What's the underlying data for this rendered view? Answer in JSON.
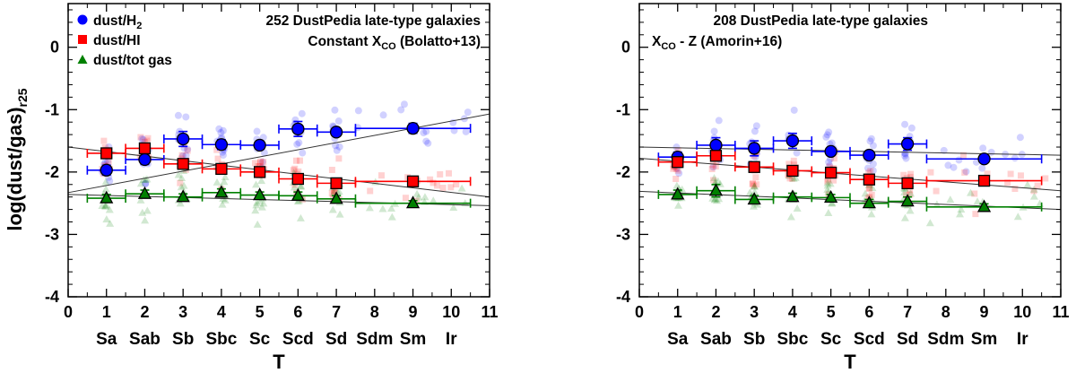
{
  "figure": {
    "ylabel_main": "log(dust/gas)",
    "ylabel_sub": "r25",
    "xlabel": "T",
    "type_labels": [
      "Sa",
      "Sab",
      "Sb",
      "Sbc",
      "Sc",
      "Scd",
      "Sd",
      "Sdm",
      "Sm",
      "Ir"
    ],
    "legend": [
      {
        "label": "dust/H",
        "sub": "2",
        "color": "#0000ff",
        "marker": "circle"
      },
      {
        "label": "dust/HI",
        "sub": "",
        "color": "#ff0000",
        "marker": "square"
      },
      {
        "label": "dust/tot gas",
        "sub": "",
        "color": "#008000",
        "marker": "triangle"
      }
    ]
  },
  "chart_data": [
    {
      "type": "scatter",
      "annotation_line1": "252 DustPedia late-type galaxies",
      "annotation_line2_pre": "Constant X",
      "annotation_line2_sub": "CO",
      "annotation_line2_post": " (Bolatto+13)",
      "xlim": [
        0,
        11
      ],
      "ylim": [
        -4,
        0.7
      ],
      "x_ticks": [
        0,
        1,
        2,
        3,
        4,
        5,
        6,
        7,
        8,
        9,
        10,
        11
      ],
      "y_ticks": [
        0,
        -1,
        -2,
        -3,
        -4
      ],
      "series": [
        {
          "name": "dust/H2",
          "color": "#0000ff",
          "marker": "circle",
          "points": [
            {
              "x": 1,
              "y": -1.97,
              "xerr": [
                0.5,
                0.5
              ],
              "yerr": 0.08
            },
            {
              "x": 2,
              "y": -1.8,
              "xerr": [
                0.5,
                0.5
              ],
              "yerr": 0.08
            },
            {
              "x": 3,
              "y": -1.47,
              "xerr": [
                0.5,
                0.5
              ],
              "yerr": 0.12
            },
            {
              "x": 4,
              "y": -1.56,
              "xerr": [
                0.5,
                0.5
              ],
              "yerr": 0.08
            },
            {
              "x": 5,
              "y": -1.57,
              "xerr": [
                0.5,
                0.5
              ],
              "yerr": 0.06
            },
            {
              "x": 6,
              "y": -1.31,
              "xerr": [
                0.5,
                0.5
              ],
              "yerr": 0.12
            },
            {
              "x": 7,
              "y": -1.36,
              "xerr": [
                0.5,
                0.5
              ],
              "yerr": 0.05
            },
            {
              "x": 9,
              "y": -1.3,
              "xerr": [
                1.5,
                1.5
              ],
              "yerr": 0.08
            }
          ],
          "fit": {
            "x1": 0,
            "y1": -2.33,
            "x2": 11,
            "y2": -1.07
          }
        },
        {
          "name": "dust/HI",
          "color": "#ff0000",
          "marker": "square",
          "points": [
            {
              "x": 1,
              "y": -1.7,
              "xerr": [
                0.5,
                0.5
              ],
              "yerr": 0.08
            },
            {
              "x": 2,
              "y": -1.62,
              "xerr": [
                0.5,
                0.5
              ],
              "yerr": 0.07
            },
            {
              "x": 3,
              "y": -1.87,
              "xerr": [
                0.5,
                0.5
              ],
              "yerr": 0.06
            },
            {
              "x": 4,
              "y": -1.95,
              "xerr": [
                0.5,
                0.5
              ],
              "yerr": 0.06
            },
            {
              "x": 5,
              "y": -2.0,
              "xerr": [
                0.5,
                0.5
              ],
              "yerr": 0.06
            },
            {
              "x": 6,
              "y": -2.11,
              "xerr": [
                0.5,
                0.5
              ],
              "yerr": 0.06
            },
            {
              "x": 7,
              "y": -2.18,
              "xerr": [
                0.5,
                0.5
              ],
              "yerr": 0.05
            },
            {
              "x": 9,
              "y": -2.15,
              "xerr": [
                1.5,
                1.5
              ],
              "yerr": 0.05
            }
          ],
          "fit": {
            "x1": 0,
            "y1": -1.6,
            "x2": 11,
            "y2": -2.4
          }
        },
        {
          "name": "dust/tot gas",
          "color": "#008000",
          "marker": "triangle",
          "points": [
            {
              "x": 1,
              "y": -2.42,
              "xerr": [
                0.5,
                0.5
              ],
              "yerr": 0.06
            },
            {
              "x": 2,
              "y": -2.35,
              "xerr": [
                0.5,
                0.5
              ],
              "yerr": 0.06
            },
            {
              "x": 3,
              "y": -2.4,
              "xerr": [
                0.5,
                0.5
              ],
              "yerr": 0.05
            },
            {
              "x": 4,
              "y": -2.33,
              "xerr": [
                0.5,
                0.5
              ],
              "yerr": 0.06
            },
            {
              "x": 5,
              "y": -2.37,
              "xerr": [
                0.5,
                0.5
              ],
              "yerr": 0.05
            },
            {
              "x": 6,
              "y": -2.38,
              "xerr": [
                0.5,
                0.5
              ],
              "yerr": 0.06
            },
            {
              "x": 7,
              "y": -2.43,
              "xerr": [
                0.5,
                0.5
              ],
              "yerr": 0.05
            },
            {
              "x": 9,
              "y": -2.5,
              "xerr": [
                1.5,
                1.5
              ],
              "yerr": 0.04
            }
          ],
          "fit": {
            "x1": 0,
            "y1": -2.36,
            "x2": 11,
            "y2": -2.54
          }
        }
      ]
    },
    {
      "type": "scatter",
      "annotation_line1": "208 DustPedia late-type galaxies",
      "annotation_line2_pre": "X",
      "annotation_line2_sub": "CO",
      "annotation_line2_post": " - Z (Amorin+16)",
      "xlim": [
        0,
        11
      ],
      "ylim": [
        -4,
        0.7
      ],
      "x_ticks": [
        0,
        1,
        2,
        3,
        4,
        5,
        6,
        7,
        8,
        9,
        10,
        11
      ],
      "y_ticks": [
        0,
        -1,
        -2,
        -3,
        -4
      ],
      "series": [
        {
          "name": "dust/H2",
          "color": "#0000ff",
          "marker": "circle",
          "points": [
            {
              "x": 1,
              "y": -1.76,
              "xerr": [
                0.5,
                0.5
              ],
              "yerr": 0.08
            },
            {
              "x": 2,
              "y": -1.57,
              "xerr": [
                0.5,
                0.5
              ],
              "yerr": 0.12
            },
            {
              "x": 3,
              "y": -1.62,
              "xerr": [
                0.5,
                0.5
              ],
              "yerr": 0.12
            },
            {
              "x": 4,
              "y": -1.5,
              "xerr": [
                0.5,
                0.5
              ],
              "yerr": 0.12
            },
            {
              "x": 5,
              "y": -1.67,
              "xerr": [
                0.5,
                0.5
              ],
              "yerr": 0.05
            },
            {
              "x": 6,
              "y": -1.73,
              "xerr": [
                0.5,
                0.5
              ],
              "yerr": 0.06
            },
            {
              "x": 7,
              "y": -1.55,
              "xerr": [
                0.5,
                0.5
              ],
              "yerr": 0.1
            },
            {
              "x": 9,
              "y": -1.79,
              "xerr": [
                1.5,
                1.5
              ],
              "yerr": 0.04
            }
          ],
          "fit": {
            "x1": 0,
            "y1": -1.6,
            "x2": 11,
            "y2": -1.73
          }
        },
        {
          "name": "dust/HI",
          "color": "#ff0000",
          "marker": "square",
          "points": [
            {
              "x": 1,
              "y": -1.84,
              "xerr": [
                0.5,
                0.5
              ],
              "yerr": 0.06
            },
            {
              "x": 2,
              "y": -1.74,
              "xerr": [
                0.5,
                0.5
              ],
              "yerr": 0.07
            },
            {
              "x": 3,
              "y": -1.92,
              "xerr": [
                0.5,
                0.5
              ],
              "yerr": 0.06
            },
            {
              "x": 4,
              "y": -1.98,
              "xerr": [
                0.5,
                0.5
              ],
              "yerr": 0.07
            },
            {
              "x": 5,
              "y": -2.01,
              "xerr": [
                0.5,
                0.5
              ],
              "yerr": 0.05
            },
            {
              "x": 6,
              "y": -2.12,
              "xerr": [
                0.5,
                0.5
              ],
              "yerr": 0.06
            },
            {
              "x": 7,
              "y": -2.18,
              "xerr": [
                0.5,
                0.5
              ],
              "yerr": 0.04
            },
            {
              "x": 9,
              "y": -2.14,
              "xerr": [
                1.5,
                1.5
              ],
              "yerr": 0.04
            }
          ],
          "fit": {
            "x1": 0,
            "y1": -1.78,
            "x2": 11,
            "y2": -2.3
          }
        },
        {
          "name": "dust/tot gas",
          "color": "#008000",
          "marker": "triangle",
          "points": [
            {
              "x": 1,
              "y": -2.36,
              "xerr": [
                0.5,
                0.5
              ],
              "yerr": 0.07
            },
            {
              "x": 2,
              "y": -2.3,
              "xerr": [
                0.5,
                0.5
              ],
              "yerr": 0.1
            },
            {
              "x": 3,
              "y": -2.44,
              "xerr": [
                0.5,
                0.5
              ],
              "yerr": 0.06
            },
            {
              "x": 4,
              "y": -2.4,
              "xerr": [
                0.5,
                0.5
              ],
              "yerr": 0.06
            },
            {
              "x": 5,
              "y": -2.41,
              "xerr": [
                0.5,
                0.5
              ],
              "yerr": 0.05
            },
            {
              "x": 6,
              "y": -2.5,
              "xerr": [
                0.5,
                0.5
              ],
              "yerr": 0.06
            },
            {
              "x": 7,
              "y": -2.47,
              "xerr": [
                0.5,
                0.5
              ],
              "yerr": 0.07
            },
            {
              "x": 9,
              "y": -2.56,
              "xerr": [
                1.5,
                1.5
              ],
              "yerr": 0.05
            }
          ],
          "fit": {
            "x1": 0,
            "y1": -2.31,
            "x2": 11,
            "y2": -2.6
          }
        }
      ]
    }
  ]
}
